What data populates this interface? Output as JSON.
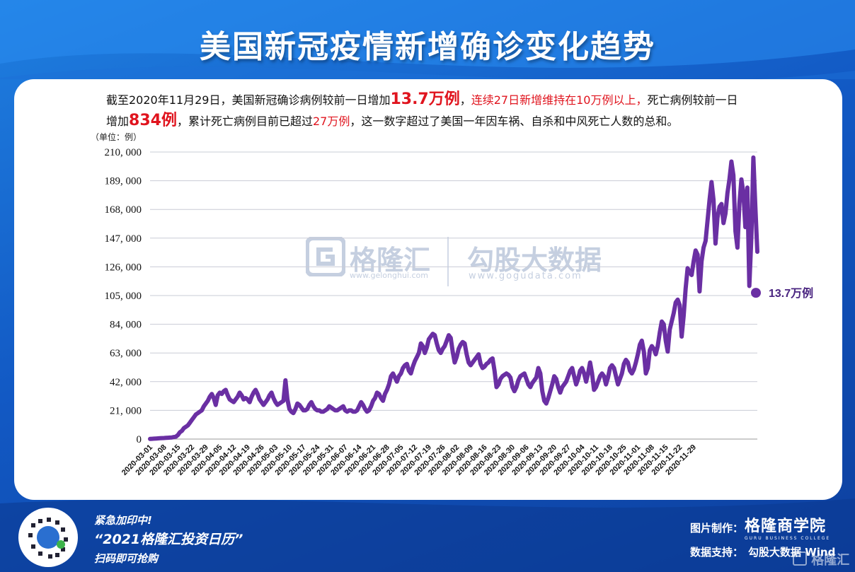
{
  "title": "美国新冠疫情新增确诊变化趋势",
  "intro": {
    "p1": "截至2020年11月29日，美国新冠确诊病例较前一日增加",
    "big1": "13.7万例",
    "p2": "，",
    "red1": "连续27日新增维持在10万例以上，",
    "p3": "死亡病例较前一日",
    "p4": "增加",
    "big2": "834例",
    "p5": "，累计死亡病例目前已超过",
    "red2": "27万例",
    "p6": "，这一数字超过了美国一年因车祸、自杀和中风死亡人数的总和。"
  },
  "watermark": {
    "gelonghui": "格隆汇",
    "gelonghui_url": "www.gelonghui.com",
    "gogudata": "勾股大数据",
    "gogudata_url": "www.gogudata.com"
  },
  "footer": {
    "line1": "紧急加印中!",
    "line2": "“2021格隆汇投资日历”",
    "line3": "扫码即可抢购",
    "made_by_label": "图片制作：",
    "brand": "格隆商学院",
    "brand_sub": "GURU BUSINESS COLLEGE",
    "data_label": "数据支持：",
    "data_source": "勾股大数据  Wind",
    "corner": "格隆汇"
  },
  "colors": {
    "line": "#6a2fa3",
    "accent": "#e0141e",
    "bg": "#1a6ad6"
  },
  "chart_data": {
    "type": "line",
    "unit_label": "（单位：例）",
    "ylim": [
      0,
      210000
    ],
    "y_ticks": [
      "210, 000",
      "189, 000",
      "168, 000",
      "147, 000",
      "126, 000",
      "105, 000",
      "84, 000",
      "63, 000",
      "42, 000",
      "21, 000",
      "0"
    ],
    "y_tick_values": [
      210000,
      189000,
      168000,
      147000,
      126000,
      105000,
      84000,
      63000,
      42000,
      21000,
      0
    ],
    "x_ticks": [
      "2020-03-01",
      "2020-03-08",
      "2020-03-15",
      "2020-03-22",
      "2020-03-29",
      "2020-04-05",
      "2020-04-12",
      "2020-04-19",
      "2020-04-26",
      "2020-05-03",
      "2020-05-10",
      "2020-05-17",
      "2020-05-24",
      "2020-05-31",
      "2020-06-07",
      "2020-06-14",
      "2020-06-21",
      "2020-06-28",
      "2020-07-05",
      "2020-07-12",
      "2020-07-19",
      "2020-07-26",
      "2020-08-02",
      "2020-08-09",
      "2020-08-16",
      "2020-08-23",
      "2020-08-30",
      "2020-09-06",
      "2020-09-13",
      "2020-09-20",
      "2020-09-27",
      "2020-10-04",
      "2020-10-11",
      "2020-10-18",
      "2020-10-25",
      "2020-11-01",
      "2020-11-08",
      "2020-11-15",
      "2020-11-22",
      "2020-11-29"
    ],
    "start_date": "2020-03-01",
    "end_label": "13.7万例",
    "grid": true,
    "values": [
      100,
      200,
      300,
      400,
      500,
      600,
      700,
      800,
      900,
      1000,
      1100,
      1200,
      1500,
      1800,
      3000,
      5000,
      6000,
      8000,
      9000,
      10000,
      12000,
      14000,
      16000,
      18000,
      19000,
      20000,
      21000,
      24000,
      26000,
      28000,
      31000,
      33000,
      30000,
      25000,
      32000,
      34000,
      33000,
      35000,
      36000,
      32000,
      29000,
      28000,
      27000,
      29000,
      31000,
      34000,
      32000,
      29000,
      30000,
      29000,
      27000,
      31000,
      34000,
      36000,
      33000,
      29000,
      27000,
      25000,
      27000,
      29000,
      32000,
      34000,
      30000,
      27000,
      25000,
      26000,
      27000,
      28000,
      43000,
      29000,
      22000,
      20000,
      19000,
      22000,
      26000,
      25000,
      23000,
      21000,
      21000,
      22000,
      25000,
      27000,
      24000,
      22000,
      21000,
      21000,
      20000,
      20000,
      21000,
      22000,
      24000,
      23000,
      22000,
      21000,
      21000,
      22000,
      23000,
      24000,
      21000,
      20000,
      21000,
      21000,
      20000,
      20000,
      21000,
      24000,
      27000,
      25000,
      22000,
      20000,
      21000,
      24000,
      28000,
      30000,
      34000,
      33000,
      30000,
      28000,
      33000,
      36000,
      40000,
      46000,
      48000,
      45000,
      42000,
      46000,
      48000,
      52000,
      54000,
      55000,
      50000,
      48000,
      53000,
      57000,
      60000,
      63000,
      70000,
      68000,
      63000,
      67000,
      73000,
      75000,
      77000,
      76000,
      70000,
      65000,
      63000,
      66000,
      68000,
      72000,
      76000,
      74000,
      64000,
      56000,
      60000,
      66000,
      69000,
      71000,
      70000,
      62000,
      56000,
      54000,
      56000,
      58000,
      60000,
      62000,
      55000,
      52000,
      53000,
      55000,
      56000,
      58000,
      59000,
      50000,
      38000,
      40000,
      44000,
      46000,
      47000,
      48000,
      47000,
      45000,
      38000,
      35000,
      38000,
      43000,
      46000,
      47000,
      48000,
      44000,
      40000,
      38000,
      41000,
      43000,
      45000,
      52000,
      48000,
      35000,
      28000,
      26000,
      30000,
      35000,
      40000,
      46000,
      44000,
      38000,
      34000,
      38000,
      40000,
      42000,
      46000,
      50000,
      52000,
      46000,
      40000,
      44000,
      50000,
      52000,
      48000,
      42000,
      48000,
      56000,
      48000,
      36000,
      38000,
      42000,
      46000,
      48000,
      46000,
      40000,
      45000,
      52000,
      54000,
      52000,
      46000,
      40000,
      44000,
      48000,
      55000,
      58000,
      56000,
      50000,
      48000,
      51000,
      56000,
      62000,
      69000,
      72000,
      64000,
      48000,
      52000,
      65000,
      68000,
      66000,
      62000,
      68000,
      78000,
      86000,
      84000,
      72000,
      64000,
      80000,
      86000,
      92000,
      100000,
      102000,
      98000,
      75000,
      90000,
      110000,
      125000,
      122000,
      120000,
      130000,
      138000,
      135000,
      108000,
      130000,
      140000,
      145000,
      160000,
      175000,
      188000,
      175000,
      143000,
      162000,
      170000,
      172000,
      158000,
      165000,
      180000,
      190000,
      203000,
      193000,
      152000,
      140000,
      172000,
      190000,
      180000,
      155000,
      184000,
      112000,
      148000,
      206000,
      170000,
      137000
    ]
  }
}
